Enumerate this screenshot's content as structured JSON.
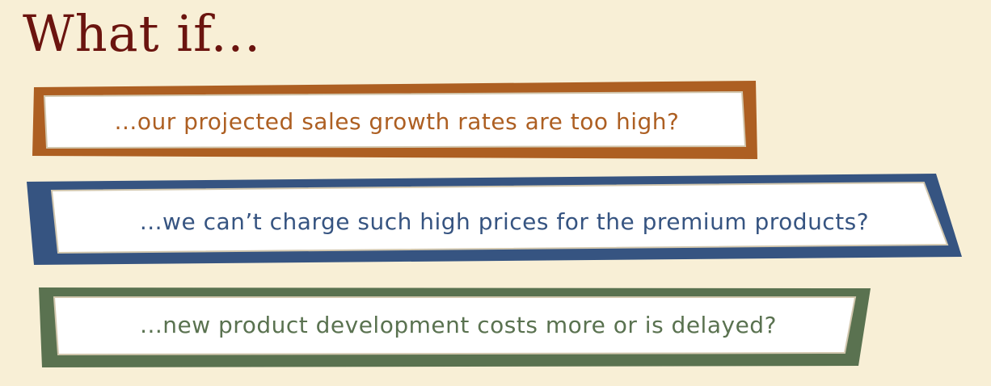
{
  "slide": {
    "title": "What if...",
    "title_color": "#6b140f",
    "background": "#f8efd6",
    "items": [
      {
        "text": "...our projected sales growth rates are too high?",
        "frame_color": "#ad5f22",
        "text_color": "#ad5f22"
      },
      {
        "text": "...we can’t charge such high prices for the premium products?",
        "frame_color": "#365481",
        "text_color": "#365481"
      },
      {
        "text": "...new product development costs more or is delayed?",
        "frame_color": "#5a7250",
        "text_color": "#5a7250"
      }
    ]
  }
}
